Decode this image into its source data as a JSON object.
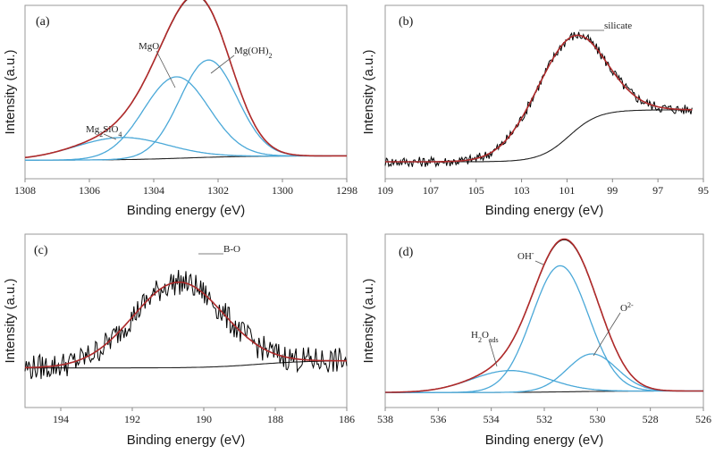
{
  "colors": {
    "component": "#4aa8d8",
    "envelope": "#b02a2a",
    "raw": "#000000",
    "background": "#222222",
    "axis": "#888888"
  },
  "chart_data": [
    {
      "type": "line",
      "panel_label": "(a)",
      "xlabel": "Binding energy (eV)",
      "ylabel": "Intensity (a.u.)",
      "xlim": [
        1308,
        1298
      ],
      "xticks": [
        "1308",
        "1306",
        "1304",
        "1302",
        "1300",
        "1298"
      ],
      "raw": false,
      "background": {
        "left": 0.035,
        "right": 0.005,
        "center": 1303.0,
        "width": 2.0
      },
      "components": [
        {
          "name": "Mg2SiO4",
          "center": 1305.0,
          "amplitude": 0.155,
          "fwhm": 3.4
        },
        {
          "name": "MgO",
          "center": 1303.3,
          "amplitude": 0.57,
          "fwhm": 2.4
        },
        {
          "name": "Mg(OH)2",
          "center": 1302.3,
          "amplitude": 0.68,
          "fwhm": 2.1
        }
      ],
      "annotations": [
        {
          "text": "Mg",
          "sub": "2",
          "text2": "SiO",
          "sub2": "4",
          "target": 1305.0
        },
        {
          "text": "MgO",
          "target": 1303.6
        },
        {
          "text": "Mg(OH)",
          "sub": "2",
          "target": 1302.2
        }
      ]
    },
    {
      "type": "line",
      "panel_label": "(b)",
      "xlabel": "Binding energy (eV)",
      "ylabel": "Intensity (a.u.)",
      "xlim": [
        109,
        95
      ],
      "xticks": [
        "109",
        "107",
        "105",
        "103",
        "101",
        "99",
        "97",
        "95"
      ],
      "raw": true,
      "xmin_data": 95.5,
      "background": {
        "left": 0.38,
        "right": 0.03,
        "center": 100.9,
        "width": 1.3
      },
      "components": [
        {
          "name": "silicate",
          "center": 101.0,
          "amplitude": 0.66,
          "fwhm": 3.6
        }
      ],
      "annotations": [
        {
          "text": "silicate",
          "target": 100.7
        }
      ]
    },
    {
      "type": "line",
      "panel_label": "(c)",
      "xlabel": "Binding energy (eV)",
      "ylabel": "Intensity (a.u.)",
      "xlim": [
        195,
        186
      ],
      "xticks": [
        "194",
        "192",
        "190",
        "188",
        "186"
      ],
      "raw": true,
      "background": {
        "left": 0.2,
        "right": 0.15,
        "center": 188.5,
        "width": 1.4
      },
      "components": [
        {
          "name": "B-O",
          "center": 190.7,
          "amplitude": 0.59,
          "fwhm": 3.0
        }
      ],
      "annotations": [
        {
          "text": "B-O",
          "target": 190.5
        }
      ]
    },
    {
      "type": "line",
      "panel_label": "(d)",
      "xlabel": "Binding energy (eV)",
      "ylabel": "Intensity (a.u.)",
      "xlim": [
        538,
        526
      ],
      "xticks": [
        "538",
        "536",
        "534",
        "532",
        "530",
        "528",
        "526"
      ],
      "raw": false,
      "background": {
        "left": 0.015,
        "right": 0.005,
        "center": 531.0,
        "width": 2.0
      },
      "components": [
        {
          "name": "H2Oads",
          "center": 533.3,
          "amplitude": 0.145,
          "fwhm": 3.4
        },
        {
          "name": "OH-",
          "center": 531.4,
          "amplitude": 0.84,
          "fwhm": 2.5
        },
        {
          "name": "O2-",
          "center": 530.2,
          "amplitude": 0.25,
          "fwhm": 2.2
        }
      ],
      "annotations": [
        {
          "text": "H",
          "sub": "2",
          "text2": "O",
          "sub2": "ads",
          "target": 533.8
        },
        {
          "text": "OH",
          "sup": "-",
          "target": 531.6
        },
        {
          "text": "O",
          "sup": "2-",
          "target": 530.1
        }
      ]
    }
  ]
}
